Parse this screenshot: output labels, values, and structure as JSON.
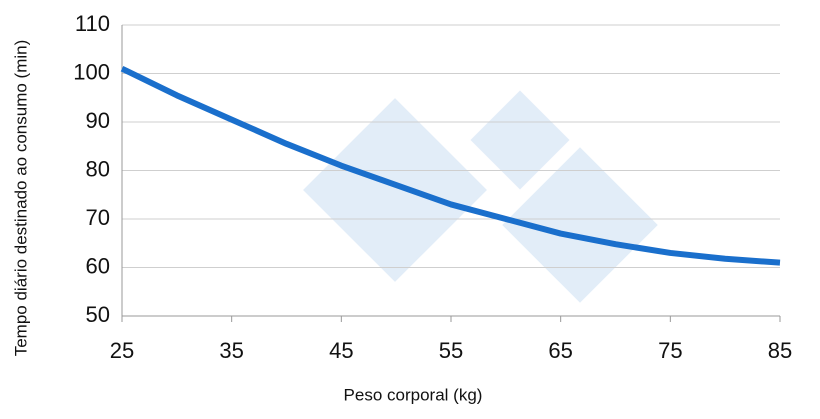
{
  "chart_data": {
    "type": "line",
    "x_label": "Peso corporal (kg)",
    "y_label": "Tempo diário destinado ao consumo (min)",
    "x": [
      25,
      30,
      35,
      40,
      45,
      50,
      55,
      60,
      65,
      70,
      75,
      80,
      85
    ],
    "series": [
      {
        "color": "#1a6fcc",
        "values": [
          101,
          95.5,
          90.5,
          85.5,
          81,
          77,
          73,
          70,
          67,
          64.8,
          63,
          61.8,
          61
        ]
      }
    ],
    "xlim": [
      25,
      85
    ],
    "xticks": [
      25,
      35,
      45,
      55,
      65,
      75,
      85
    ],
    "ylim": [
      50,
      110
    ],
    "yticks": [
      50,
      60,
      70,
      80,
      90,
      100,
      110
    ],
    "grid": true
  }
}
